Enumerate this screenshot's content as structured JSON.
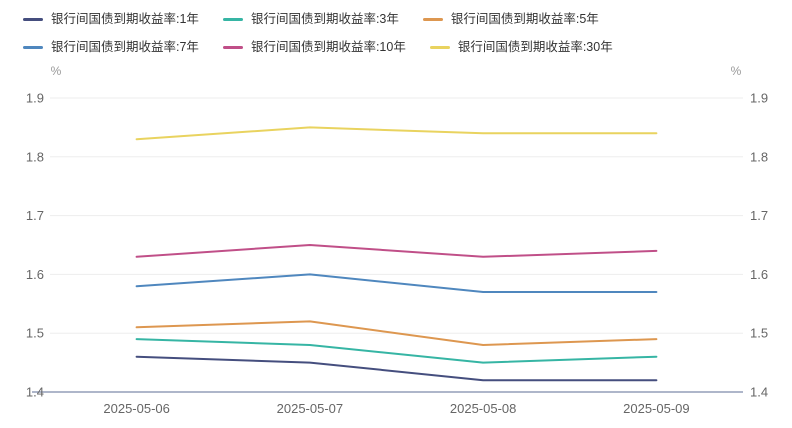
{
  "legend": {
    "per_row": 3,
    "items": [
      {
        "label": "银行间国债到期收益率:1年",
        "color": "#454e7e"
      },
      {
        "label": "银行间国债到期收益率:3年",
        "color": "#36b5a4"
      },
      {
        "label": "银行间国债到期收益率:5年",
        "color": "#dd9750"
      },
      {
        "label": "银行间国债到期收益率:7年",
        "color": "#4f87be"
      },
      {
        "label": "银行间国债到期收益率:10年",
        "color": "#c04f88"
      },
      {
        "label": "银行间国债到期收益率:30年",
        "color": "#e9d35f"
      }
    ]
  },
  "chart_data": {
    "type": "line",
    "title": "",
    "categories": [
      "2025-05-06",
      "2025-05-07",
      "2025-05-08",
      "2025-05-09"
    ],
    "series": [
      {
        "name": "银行间国债到期收益率:1年",
        "color": "#454e7e",
        "values": [
          1.46,
          1.45,
          1.42,
          1.42
        ]
      },
      {
        "name": "银行间国债到期收益率:3年",
        "color": "#36b5a4",
        "values": [
          1.49,
          1.48,
          1.45,
          1.46
        ]
      },
      {
        "name": "银行间国债到期收益率:5年",
        "color": "#dd9750",
        "values": [
          1.51,
          1.52,
          1.48,
          1.49
        ]
      },
      {
        "name": "银行间国债到期收益率:7年",
        "color": "#4f87be",
        "values": [
          1.58,
          1.6,
          1.57,
          1.57
        ]
      },
      {
        "name": "银行间国债到期收益率:10年",
        "color": "#c04f88",
        "values": [
          1.63,
          1.65,
          1.63,
          1.64
        ]
      },
      {
        "name": "银行间国债到期收益率:30年",
        "color": "#e9d35f",
        "values": [
          1.83,
          1.85,
          1.84,
          1.84
        ]
      }
    ],
    "y_axis": {
      "unit": "%",
      "ticks": [
        1.9,
        1.8,
        1.7,
        1.6,
        1.5,
        1.4
      ],
      "min": 1.4,
      "max": 1.9,
      "dual_axis": true
    },
    "grid": true,
    "legend_position": "top",
    "colors": {
      "grid_line": "#ededed",
      "axis_line": "#5d6d96",
      "tick_label": "#666666",
      "unit_label": "#999999",
      "legend_text": "#333333"
    }
  }
}
